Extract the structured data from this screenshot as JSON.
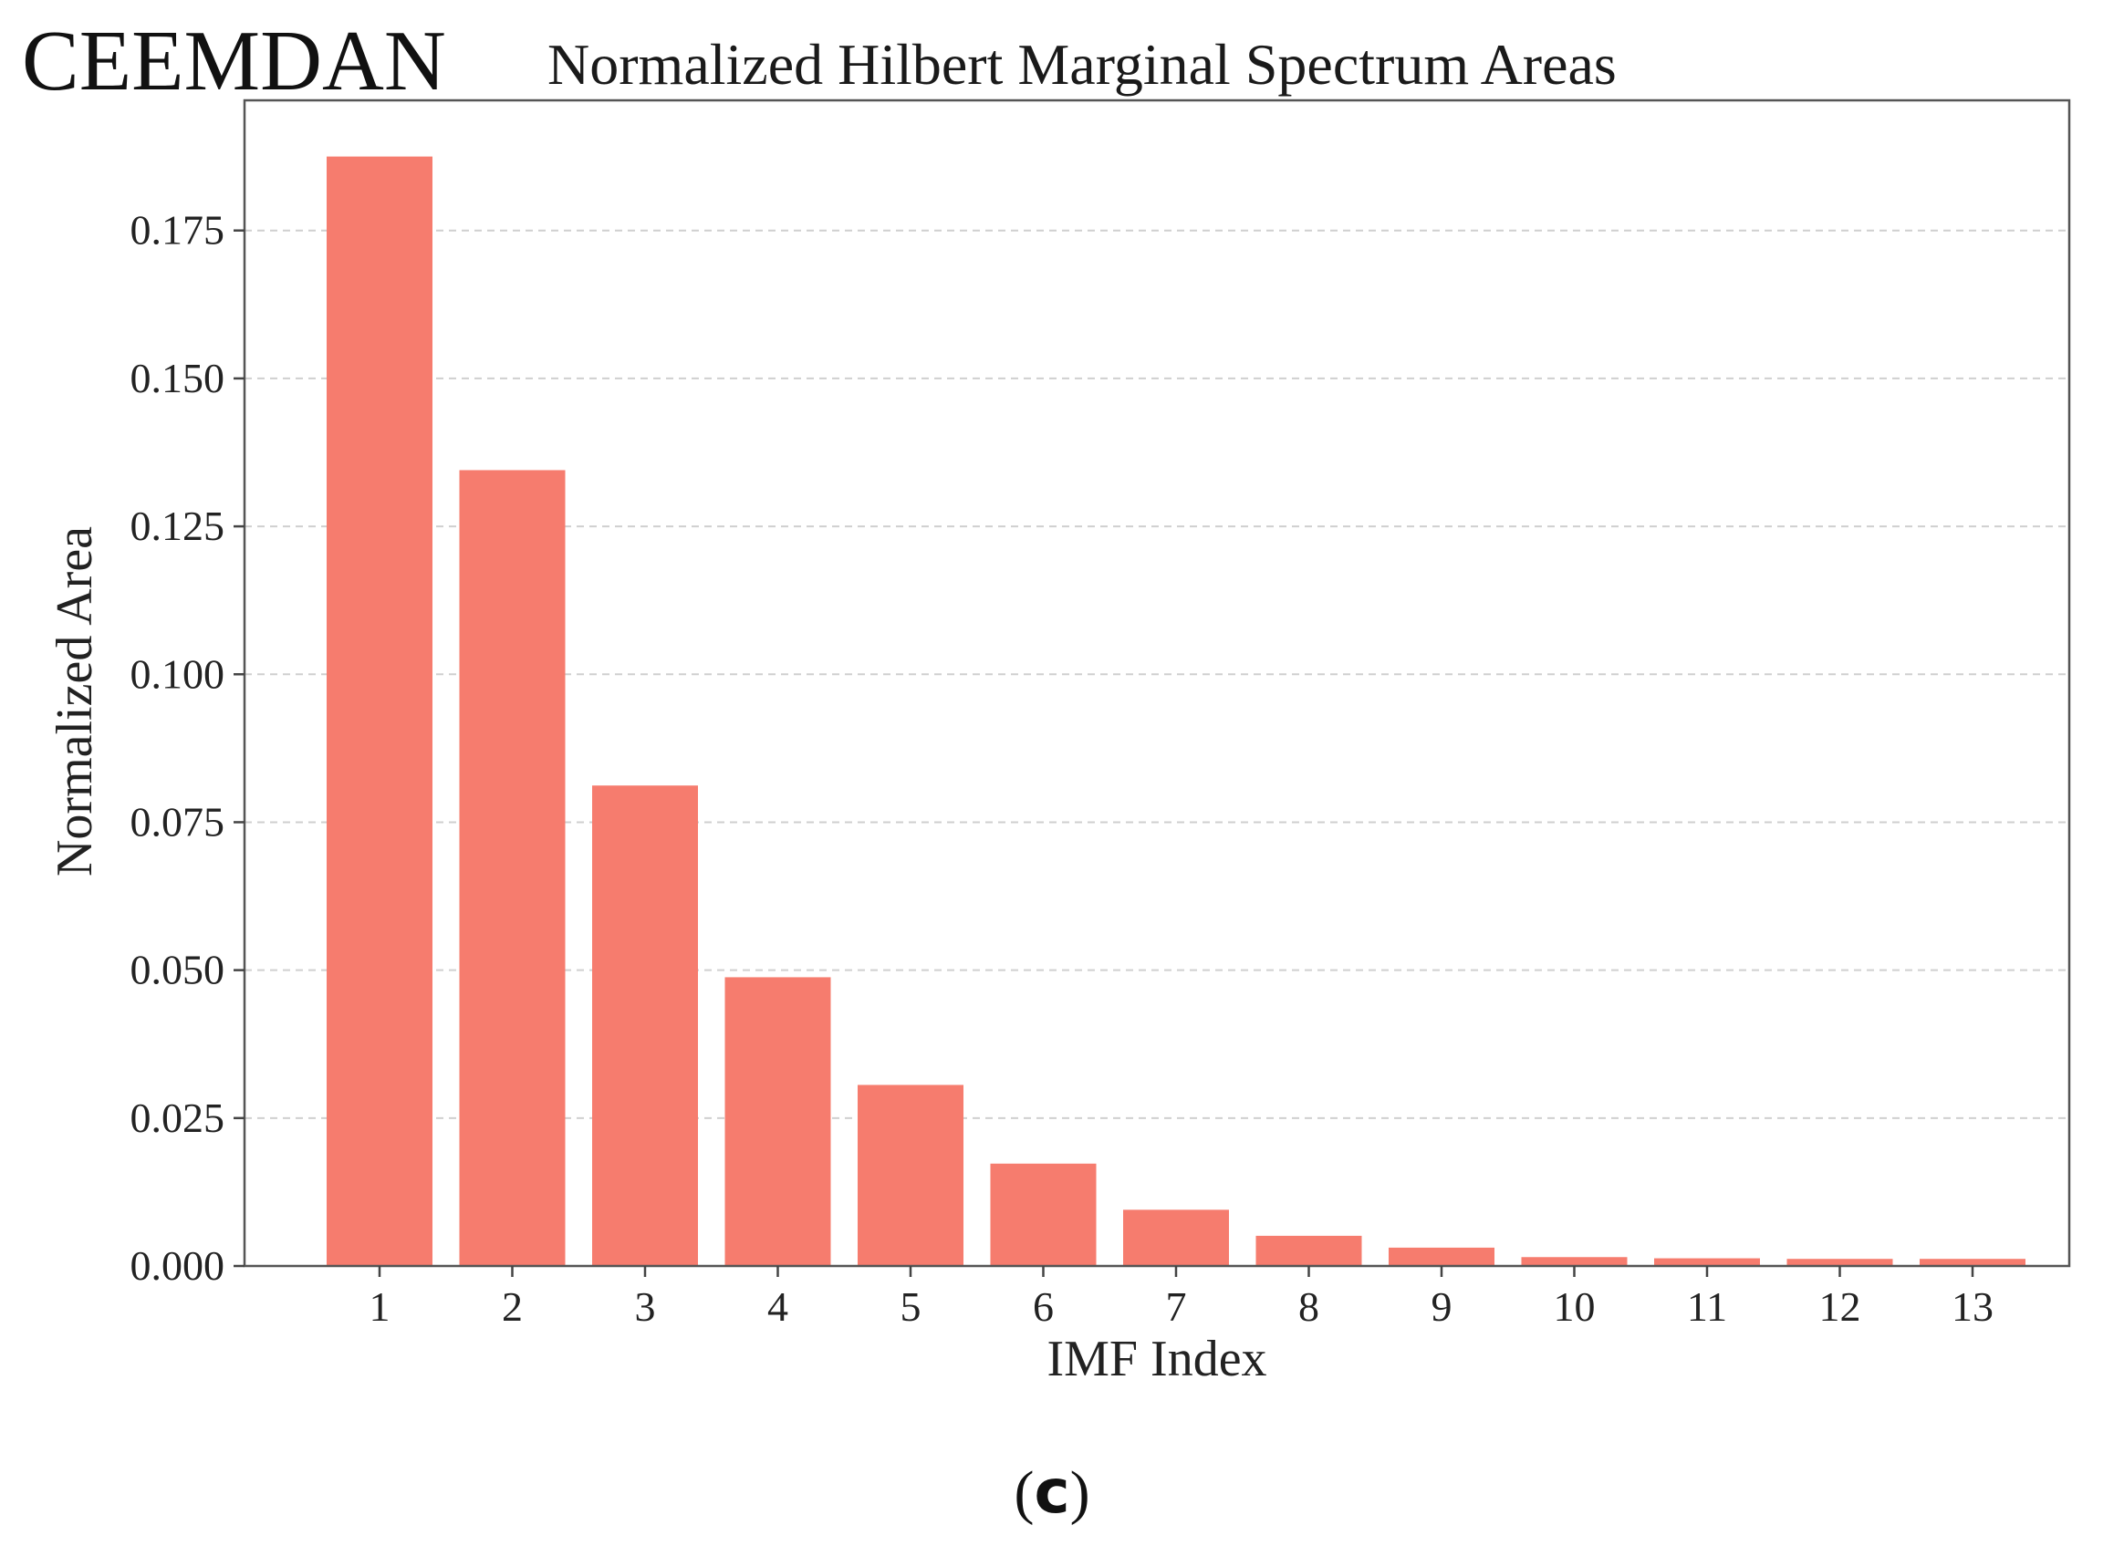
{
  "method_label": "CEEMDAN",
  "panel_caption": {
    "open": "(",
    "letter": "c",
    "close": ")"
  },
  "chart_data": {
    "type": "bar",
    "title": "Normalized Hilbert Marginal Spectrum Areas",
    "xlabel": "IMF Index",
    "ylabel": "Normalized Area",
    "categories": [
      "1",
      "2",
      "3",
      "4",
      "5",
      "6",
      "7",
      "8",
      "9",
      "10",
      "11",
      "12",
      "13"
    ],
    "values": [
      0.1875,
      0.1345,
      0.0812,
      0.0488,
      0.0306,
      0.0173,
      0.0095,
      0.0051,
      0.0031,
      0.0015,
      0.0013,
      0.0012,
      0.0012
    ],
    "yticks": [
      "0.000",
      "0.025",
      "0.050",
      "0.075",
      "0.100",
      "0.125",
      "0.150",
      "0.175"
    ],
    "ylim": [
      0,
      0.197
    ],
    "grid": "y-dashed",
    "bar_color": "#f67c6e"
  }
}
